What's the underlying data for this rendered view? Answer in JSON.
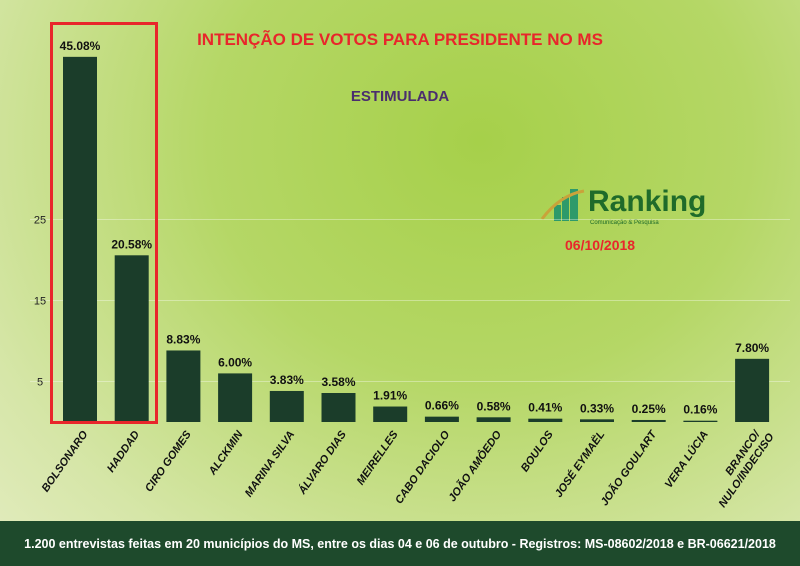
{
  "chart_data": {
    "type": "bar",
    "title": "INTENÇÃO DE VOTOS PARA PRESIDENTE NO MS",
    "subtitle": "ESTIMULADA",
    "categories": [
      "BOLSONARO",
      "HADDAD",
      "CIRO GOMES",
      "ALCKMIN",
      "MARINA SILVA",
      "ÁLVARO DIAS",
      "MEIRELLES",
      "CABO DACIOLO",
      "JOÃO AMÔEDO",
      "BOULOS",
      "JOSÉ EYMAËL",
      "JOÃO GOULART",
      "VERA LÚCIA",
      "BRANCO/ NULO/INDECISO"
    ],
    "values": [
      45.08,
      20.58,
      8.83,
      6.0,
      3.83,
      3.58,
      1.91,
      0.66,
      0.58,
      0.41,
      0.33,
      0.25,
      0.16,
      7.8
    ],
    "labels": [
      "45.08%",
      "20.58%",
      "8.83%",
      "6.00%",
      "3.83%",
      "3.58%",
      "1.91%",
      "0.66%",
      "0.58%",
      "0.41%",
      "0.33%",
      "0.25%",
      "0.16%",
      "7.80%"
    ],
    "yticks": [
      5,
      15,
      25
    ],
    "ylim": [
      0,
      50
    ],
    "highlighted": [
      "BOLSONARO",
      "HADDAD"
    ],
    "bar_color": "#1b3d2a",
    "highlight_color": "#e8262b"
  },
  "brand": {
    "name": "Ranking",
    "tagline": "Comunicação & Pesquisa"
  },
  "date": "06/10/2018",
  "footer": "1.200 entrevistas feitas em 20 municípios do MS, entre os dias 04 e 06 de outubro - Registros: MS-08602/2018 e BR-06621/2018"
}
